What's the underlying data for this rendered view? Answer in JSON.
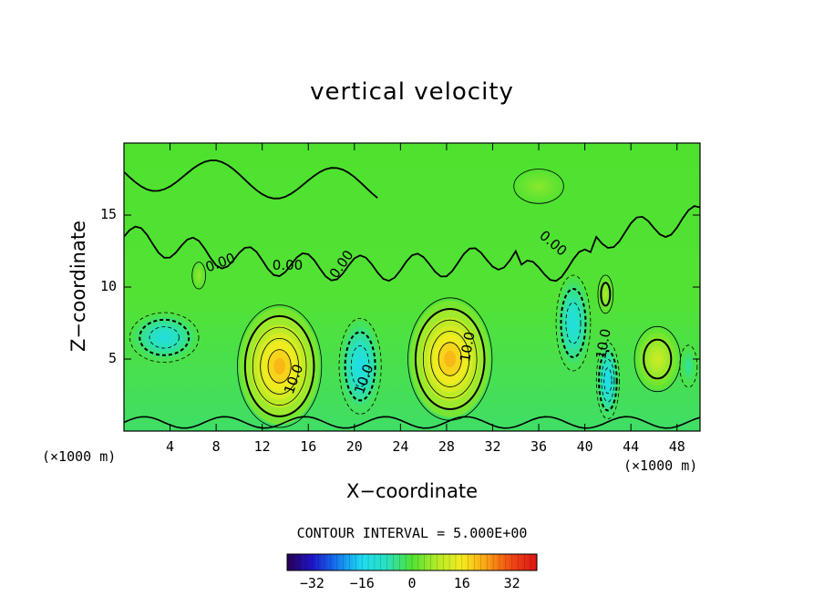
{
  "chart_data": {
    "type": "heatmap",
    "title": "vertical velocity",
    "xlabel": "X−coordinate",
    "ylabel": "Z−coordinate",
    "x_unit_left": "(×1000 m)",
    "x_unit_right": "(×1000 m)",
    "xlim": [
      0,
      50
    ],
    "ylim": [
      0,
      20
    ],
    "x_ticks": [
      "4",
      "8",
      "12",
      "16",
      "20",
      "24",
      "28",
      "32",
      "36",
      "40",
      "44",
      "48"
    ],
    "y_ticks": [
      "5",
      "10",
      "15"
    ],
    "contour_interval_text": "CONTOUR INTERVAL = 5.000E+00",
    "contour_labels": [
      "0.00",
      "0.00",
      "0.00",
      "0.00",
      "10.0",
      "10.0",
      "10.0",
      "10.0"
    ],
    "colorbar": {
      "range": [
        -40,
        40
      ],
      "tick_values": [
        -32,
        -16,
        0,
        16,
        32
      ],
      "tick_labels": [
        "−32",
        "−16",
        "0",
        "16",
        "32"
      ]
    },
    "features": [
      {
        "kind": "updraft",
        "x": 13.5,
        "z": 4.5,
        "peak": 25
      },
      {
        "kind": "updraft",
        "x": 28.3,
        "z": 5.0,
        "peak": 25
      },
      {
        "kind": "updraft",
        "x": 46.3,
        "z": 5.0,
        "peak": 12
      },
      {
        "kind": "updraft",
        "x": 6.5,
        "z": 10.8,
        "peak": 6
      },
      {
        "kind": "updraft",
        "x": 41.8,
        "z": 9.5,
        "peak": 8
      },
      {
        "kind": "updraft",
        "x": 36.0,
        "z": 17.0,
        "peak": 5
      },
      {
        "kind": "downdraft",
        "x": 3.5,
        "z": 6.5,
        "peak": -14
      },
      {
        "kind": "downdraft",
        "x": 20.5,
        "z": 4.5,
        "peak": -17
      },
      {
        "kind": "downdraft",
        "x": 39.0,
        "z": 7.5,
        "peak": -15
      },
      {
        "kind": "downdraft",
        "x": 42.0,
        "z": 3.5,
        "peak": -18
      },
      {
        "kind": "downdraft",
        "x": 49.0,
        "z": 4.5,
        "peak": -7
      }
    ]
  }
}
